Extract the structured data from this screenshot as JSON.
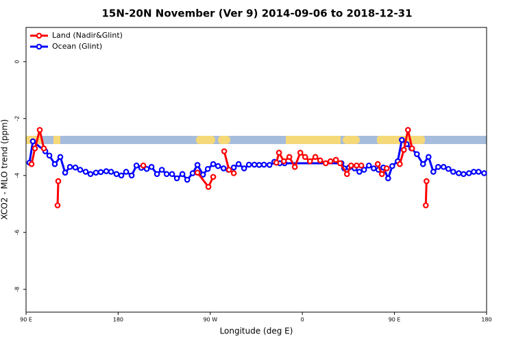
{
  "chart_data": {
    "type": "line",
    "title": "15N-20N November (Ver 9)   2014-09-06 to 2018-12-31",
    "xlabel": "Longitude (deg E)",
    "ylabel": "XCO2 - MLO trend (ppm)",
    "xlim": [
      90,
      540
    ],
    "ylim": [
      -8.8,
      1.2
    ],
    "xticks": [
      {
        "value": 90,
        "label": "90 E"
      },
      {
        "value": 180,
        "label": "180"
      },
      {
        "value": 270,
        "label": "90 W"
      },
      {
        "value": 360,
        "label": "0"
      },
      {
        "value": 450,
        "label": "90 E"
      },
      {
        "value": 540,
        "label": "180"
      }
    ],
    "yticks": [
      0,
      -2,
      -4,
      -6,
      -8
    ],
    "legend": "top-left",
    "series": [
      {
        "name": "Land (Nadir&Glint)",
        "color": "#ff0000",
        "x": [
          95.4,
          98.7,
          103.4,
          107.4,
          null,
          120.8,
          121.5,
          null,
          204.6,
          null,
          257.5,
          268.2,
          272.9,
          null,
          283.6,
          288.3,
          293,
          null,
          334.6,
          337.2,
          341.9,
          347.3,
          352.6,
          358,
          362.7,
          367.4,
          372.7,
          377.4,
          382.8,
          387.5,
          392.8,
          396.9,
          403.6,
          407.6,
          413,
          417.6,
          null,
          433.7,
          437.7,
          442.4,
          null,
          455.2,
          459.2,
          463.2,
          467.2,
          null,
          480.6,
          481.3
        ],
        "values": [
          -3.6,
          -3.05,
          -2.4,
          -3.05,
          null,
          -5.05,
          -4.2,
          null,
          -3.65,
          null,
          -3.9,
          -4.4,
          -4.05,
          null,
          -3.15,
          -3.8,
          -3.92,
          null,
          -3.55,
          -3.2,
          -3.5,
          -3.35,
          -3.7,
          -3.2,
          -3.35,
          -3.5,
          -3.35,
          -3.47,
          -3.57,
          -3.5,
          -3.45,
          -3.57,
          -3.95,
          -3.65,
          -3.65,
          -3.65,
          null,
          -3.6,
          -3.95,
          -3.75,
          null,
          -3.6,
          -3.1,
          -2.4,
          -3.05,
          null,
          -5.05,
          -4.2
        ]
      },
      {
        "name": "Ocean (Glint)",
        "color": "#0000ff",
        "x": [
          93.3,
          96.7,
          108.8,
          112.8,
          118.1,
          123.5,
          128.2,
          132.9,
          138.2,
          142.9,
          148.3,
          153,
          158.3,
          163,
          168.4,
          173.1,
          178.4,
          183.1,
          187.8,
          193.2,
          197.9,
          202.6,
          207.9,
          212.6,
          218,
          222.7,
          227.4,
          232.7,
          237.4,
          242.8,
          247.5,
          252.8,
          257.5,
          262.9,
          267.6,
          272.9,
          277.6,
          283,
          287.7,
          293,
          297.7,
          303.1,
          307.8,
          313.1,
          317.8,
          322.5,
          327.9,
          332.6,
          337.9,
          342.6,
          398.2,
          400.9,
          405.6,
          411,
          415.7,
          420.3,
          425,
          429.7,
          434.4,
          439.1,
          443.8,
          447.8,
          453.2,
          457.2,
          461.9,
          466.5,
          471.9,
          477.9,
          483.3,
          488,
          492.7,
          498,
          502.7,
          507.4,
          512.8,
          517.5,
          522.8,
          527.5,
          532.2,
          537.6
        ],
        "values": [
          -3.55,
          -2.8,
          -3.15,
          -3.3,
          -3.6,
          -3.35,
          -3.9,
          -3.7,
          -3.72,
          -3.8,
          -3.87,
          -3.95,
          -3.9,
          -3.88,
          -3.85,
          -3.87,
          -3.95,
          -4.0,
          -3.87,
          -4.0,
          -3.65,
          -3.73,
          -3.77,
          -3.7,
          -3.95,
          -3.8,
          -3.95,
          -3.95,
          -4.1,
          -3.95,
          -4.15,
          -3.92,
          -3.63,
          -3.97,
          -3.77,
          -3.6,
          -3.67,
          -3.75,
          -3.8,
          -3.72,
          -3.6,
          -3.75,
          -3.62,
          -3.62,
          -3.63,
          -3.62,
          -3.63,
          -3.52,
          -3.57,
          -3.57,
          -3.57,
          -3.75,
          -3.72,
          -3.75,
          -3.87,
          -3.8,
          -3.65,
          -3.75,
          -3.8,
          -3.72,
          -4.1,
          -3.67,
          -3.5,
          -2.75,
          -2.9,
          -3.05,
          -3.25,
          -3.6,
          -3.35,
          -3.87,
          -3.7,
          -3.7,
          -3.77,
          -3.87,
          -3.92,
          -3.95,
          -3.92,
          -3.87,
          -3.87,
          -3.92
        ]
      }
    ]
  }
}
